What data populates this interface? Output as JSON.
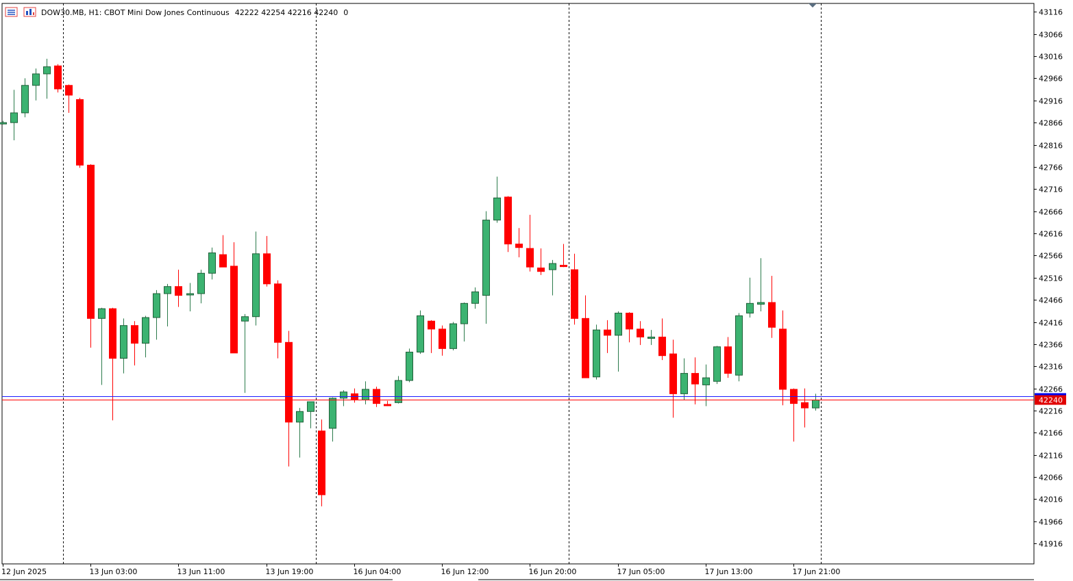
{
  "header": {
    "symbol_info": "DOW30.MB, H1:  CBOT Mini Dow Jones Continuous",
    "ohlc": "42222 42254 42216 42240",
    "volume": "0"
  },
  "colors": {
    "bull": "#3cb371",
    "bear": "#ff0000",
    "candle_outline": "#000000",
    "bid_line": "#ff0000",
    "ask_line": "#1a1aff",
    "period_separator": "#000000",
    "price_tag_bg": "#e00000",
    "ask_tag_bg": "#0000ee"
  },
  "chart_data": {
    "type": "candlestick",
    "timeframe": "H1",
    "ylim": [
      41870,
      43135
    ],
    "y_ticks": [
      43116,
      43066,
      43016,
      42966,
      42916,
      42866,
      42816,
      42766,
      42716,
      42666,
      42616,
      42566,
      42516,
      42466,
      42416,
      42366,
      42316,
      42266,
      42216,
      42166,
      42116,
      42066,
      42016,
      41966,
      41916
    ],
    "x_labels": [
      {
        "bar": 0,
        "label": "12 Jun 2025"
      },
      {
        "bar": 8,
        "label": "13 Jun 03:00"
      },
      {
        "bar": 16,
        "label": "13 Jun 11:00"
      },
      {
        "bar": 24,
        "label": "13 Jun 19:00"
      },
      {
        "bar": 32,
        "label": "16 Jun 04:00"
      },
      {
        "bar": 40,
        "label": "16 Jun 12:00"
      },
      {
        "bar": 48,
        "label": "16 Jun 20:00"
      },
      {
        "bar": 56,
        "label": "17 Jun 05:00"
      },
      {
        "bar": 64,
        "label": "17 Jun 13:00"
      },
      {
        "bar": 72,
        "label": "17 Jun 21:00"
      }
    ],
    "day_separators_after_bar": [
      5,
      28,
      51,
      74
    ],
    "current_price": 42240,
    "current_price_label": "42240",
    "ask_price": 42248,
    "ohlc": [
      [
        42866,
        42870,
        42862,
        42866
      ],
      [
        42866,
        42940,
        42826,
        42888
      ],
      [
        42888,
        42966,
        42878,
        42950
      ],
      [
        42950,
        42988,
        42916,
        42976
      ],
      [
        42976,
        43010,
        42920,
        42992
      ],
      [
        42994,
        42998,
        42934,
        42942
      ],
      [
        42950,
        42952,
        42888,
        42928
      ],
      [
        42918,
        42922,
        42764,
        42770
      ],
      [
        42770,
        42772,
        42358,
        42424
      ],
      [
        42424,
        42448,
        42274,
        42446
      ],
      [
        42446,
        42448,
        42194,
        42334
      ],
      [
        42334,
        42424,
        42300,
        42408
      ],
      [
        42408,
        42418,
        42318,
        42368
      ],
      [
        42368,
        42430,
        42336,
        42426
      ],
      [
        42426,
        42488,
        42376,
        42480
      ],
      [
        42480,
        42502,
        42406,
        42496
      ],
      [
        42496,
        42534,
        42450,
        42476
      ],
      [
        42478,
        42504,
        42440,
        42480
      ],
      [
        42480,
        42534,
        42458,
        42526
      ],
      [
        42526,
        42584,
        42512,
        42572
      ],
      [
        42568,
        42612,
        42540,
        42540
      ],
      [
        42542,
        42596,
        42346,
        42346
      ],
      [
        42418,
        42434,
        42256,
        42428
      ],
      [
        42428,
        42620,
        42408,
        42570
      ],
      [
        42570,
        42610,
        42496,
        42502
      ],
      [
        42502,
        42510,
        42334,
        42370
      ],
      [
        42370,
        42396,
        42090,
        42190
      ],
      [
        42190,
        42222,
        42110,
        42214
      ],
      [
        42214,
        42236,
        42176,
        42236
      ],
      [
        42170,
        42196,
        42000,
        42026
      ],
      [
        42176,
        42246,
        42146,
        42244
      ],
      [
        42244,
        42262,
        42226,
        42258
      ],
      [
        42254,
        42266,
        42234,
        42240
      ],
      [
        42240,
        42282,
        42230,
        42264
      ],
      [
        42264,
        42270,
        42224,
        42232
      ],
      [
        42230,
        42238,
        42226,
        42228
      ],
      [
        42234,
        42294,
        42232,
        42284
      ],
      [
        42284,
        42356,
        42280,
        42348
      ],
      [
        42348,
        42442,
        42344,
        42430
      ],
      [
        42418,
        42420,
        42346,
        42400
      ],
      [
        42400,
        42408,
        42340,
        42356
      ],
      [
        42356,
        42416,
        42352,
        42412
      ],
      [
        42412,
        42460,
        42372,
        42458
      ],
      [
        42458,
        42494,
        42446,
        42484
      ],
      [
        42476,
        42666,
        42412,
        42646
      ],
      [
        42646,
        42744,
        42640,
        42696
      ],
      [
        42698,
        42700,
        42574,
        42592
      ],
      [
        42592,
        42628,
        42562,
        42584
      ],
      [
        42582,
        42658,
        42530,
        42540
      ],
      [
        42538,
        42582,
        42522,
        42530
      ],
      [
        42534,
        42556,
        42476,
        42548
      ],
      [
        42544,
        42592,
        42540,
        42542
      ],
      [
        42534,
        42570,
        42410,
        42424
      ],
      [
        42424,
        42476,
        42290,
        42290
      ],
      [
        42292,
        42410,
        42286,
        42398
      ],
      [
        42398,
        42420,
        42346,
        42386
      ],
      [
        42386,
        42440,
        42304,
        42436
      ],
      [
        42436,
        42438,
        42370,
        42400
      ],
      [
        42400,
        42418,
        42364,
        42382
      ],
      [
        42382,
        42398,
        42364,
        42382
      ],
      [
        42382,
        42424,
        42330,
        42340
      ],
      [
        42344,
        42376,
        42200,
        42254
      ],
      [
        42254,
        42334,
        42240,
        42300
      ],
      [
        42300,
        42336,
        42230,
        42276
      ],
      [
        42274,
        42320,
        42226,
        42290
      ],
      [
        42282,
        42362,
        42276,
        42360
      ],
      [
        42360,
        42382,
        42290,
        42300
      ],
      [
        42296,
        42436,
        42282,
        42430
      ],
      [
        42436,
        42516,
        42426,
        42458
      ],
      [
        42456,
        42560,
        42440,
        42460
      ],
      [
        42460,
        42520,
        42380,
        42404
      ],
      [
        42400,
        42442,
        42228,
        42264
      ],
      [
        42264,
        42266,
        42146,
        42232
      ],
      [
        42234,
        42266,
        42178,
        42222
      ],
      [
        42222,
        42254,
        42216,
        42240
      ]
    ]
  }
}
